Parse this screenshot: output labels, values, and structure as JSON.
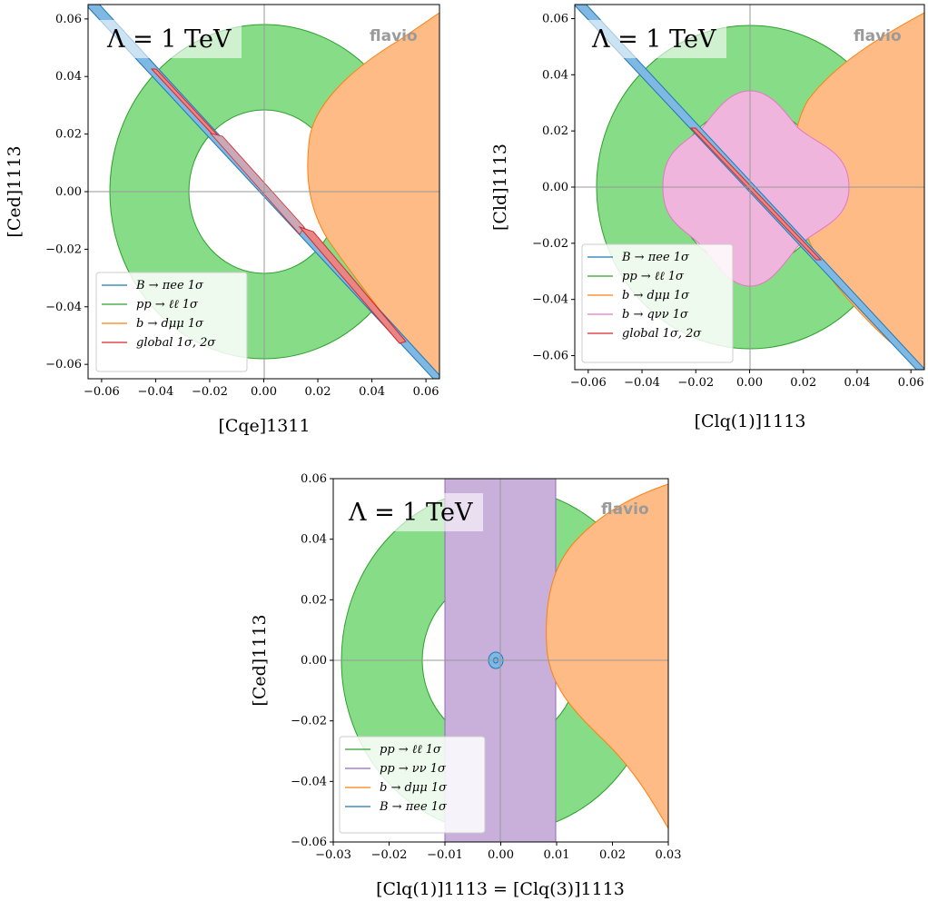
{
  "colors": {
    "blue_line": "#1f77b4",
    "blue_fill": "#7fb8e3",
    "green_line": "#2ca02c",
    "green_fill": "#87dc87",
    "orange_line": "#ff7f0e",
    "orange_fill": "#ffbb85",
    "pink_line": "#e377c2",
    "pink_fill": "#f0b5dd",
    "purple_line": "#9467bd",
    "purple_fill": "#c8b0db",
    "red_line": "#d62728",
    "red_fill": "#e88686"
  },
  "chart_data": [
    {
      "type": "contour",
      "title": "",
      "annotation": "Λ = 1 TeV",
      "brand": "flavio",
      "xlabel": "[Cqe]1311",
      "ylabel": "[Ced]1113",
      "xlim": [
        -0.065,
        0.065
      ],
      "ylim": [
        -0.065,
        0.065
      ],
      "xticks": [
        "−0.06",
        "−0.04",
        "−0.02",
        "0.00",
        "0.02",
        "0.04",
        "0.06"
      ],
      "yticks": [
        "−0.06",
        "−0.04",
        "−0.02",
        "0.00",
        "0.02",
        "0.04",
        "0.06"
      ],
      "legend_position": "lower left",
      "legend": [
        {
          "label": "B → πee 1σ",
          "color": "#1f77b4"
        },
        {
          "label": "pp → ℓℓ 1σ",
          "color": "#2ca02c"
        },
        {
          "label": "b → dμμ 1σ",
          "color": "#ff7f0e"
        },
        {
          "label": "global 1σ, 2σ",
          "color": "#d62728"
        }
      ],
      "regions": {
        "pp_ll": {
          "kind": "annulus",
          "inner_radius": 0.028,
          "outer_radius": 0.057
        },
        "b_dmumu": {
          "kind": "region right of boundary",
          "boundary": [
            [
              0.017,
              0.065
            ],
            [
              0.02,
              0.04
            ],
            [
              0.019,
              0.02
            ],
            [
              0.017,
              0.0
            ],
            [
              0.02,
              -0.02
            ],
            [
              0.03,
              -0.035
            ],
            [
              0.04,
              -0.048
            ],
            [
              0.05,
              -0.058
            ],
            [
              0.065,
              -0.063
            ]
          ]
        },
        "B_piee": {
          "kind": "band along y = -x",
          "half_width": 0.0012
        },
        "global": {
          "kind": "segments along y = -x",
          "segments": [
            [
              -0.042,
              0.042,
              -0.018,
              0.018
            ],
            [
              0.013,
              -0.013,
              0.052,
              -0.052
            ]
          ]
        }
      }
    },
    {
      "type": "contour",
      "title": "",
      "annotation": "Λ = 1 TeV",
      "brand": "flavio",
      "xlabel": "[Clq(1)]1113",
      "ylabel": "[Cld]1113",
      "xlim": [
        -0.065,
        0.065
      ],
      "ylim": [
        -0.065,
        0.065
      ],
      "xticks": [
        "−0.06",
        "−0.04",
        "−0.02",
        "0.00",
        "0.02",
        "0.04",
        "0.06"
      ],
      "yticks": [
        "−0.06",
        "−0.04",
        "−0.02",
        "0.00",
        "0.02",
        "0.04",
        "0.06"
      ],
      "legend_position": "lower left",
      "legend": [
        {
          "label": "B → πee 1σ",
          "color": "#1f77b4"
        },
        {
          "label": "pp → ℓℓ 1σ",
          "color": "#2ca02c"
        },
        {
          "label": "b → dμμ 1σ",
          "color": "#ff7f0e"
        },
        {
          "label": "b → qνν 1σ",
          "color": "#e377c2"
        },
        {
          "label": "global 1σ, 2σ",
          "color": "#d62728"
        }
      ],
      "regions": {
        "pp_ll": {
          "kind": "annulus",
          "inner_radius": 0.028,
          "outer_radius": 0.057
        },
        "b_dmumu": {
          "kind": "region right of boundary",
          "boundary": [
            [
              0.02,
              0.065
            ],
            [
              0.017,
              0.04
            ],
            [
              0.016,
              0.02
            ],
            [
              0.017,
              0.0
            ],
            [
              0.02,
              -0.02
            ],
            [
              0.03,
              -0.035
            ],
            [
              0.04,
              -0.048
            ],
            [
              0.05,
              -0.058
            ],
            [
              0.065,
              -0.063
            ]
          ]
        },
        "b_qnunu": {
          "kind": "rounded square",
          "half_width": 0.035
        },
        "B_piee": {
          "kind": "band along y = -x",
          "half_width": 0.0012
        },
        "global": {
          "kind": "segment along y = -x",
          "segments": [
            [
              -0.022,
              0.021,
              0.027,
              -0.026
            ]
          ]
        }
      }
    },
    {
      "type": "contour",
      "title": "",
      "annotation": "Λ = 1 TeV",
      "brand": "flavio",
      "xlabel": "[Clq(1)]1113 = [Clq(3)]1113",
      "ylabel": "[Ced]1113",
      "xlim": [
        -0.03,
        0.03
      ],
      "ylim": [
        -0.06,
        0.06
      ],
      "xticks": [
        "−0.03",
        "−0.02",
        "−0.01",
        "0.00",
        "0.01",
        "0.02",
        "0.03"
      ],
      "yticks": [
        "−0.06",
        "−0.04",
        "−0.02",
        "0.00",
        "0.02",
        "0.04",
        "0.06"
      ],
      "legend_position": "lower left",
      "legend": [
        {
          "label": "pp → ℓℓ 1σ",
          "color": "#2ca02c"
        },
        {
          "label": "pp → νν 1σ",
          "color": "#9467bd"
        },
        {
          "label": "b → dμμ 1σ",
          "color": "#ff7f0e"
        },
        {
          "label": "B → πee 1σ",
          "color": "#1f77b4"
        }
      ],
      "regions": {
        "pp_ll": {
          "kind": "ellipse annulus",
          "inner_radius": 0.014,
          "outer_radius": 0.0285,
          "y_scale": 2
        },
        "pp_nunu": {
          "kind": "vertical band",
          "x_range": [
            -0.01,
            0.01
          ]
        },
        "b_dmumu": {
          "kind": "region right of boundary",
          "boundary": [
            [
              0.03,
              0.058
            ],
            [
              0.022,
              0.054
            ],
            [
              0.015,
              0.045
            ],
            [
              0.01,
              0.032
            ],
            [
              0.009,
              0.02
            ],
            [
              0.008,
              0.0
            ],
            [
              0.01,
              -0.014
            ],
            [
              0.015,
              -0.025
            ],
            [
              0.02,
              -0.033
            ],
            [
              0.025,
              -0.042
            ],
            [
              0.03,
              -0.056
            ]
          ]
        },
        "B_piee": {
          "kind": "small ellipse",
          "center": [
            -0.0008,
            0.0
          ],
          "rx": 0.0008,
          "ry": 0.0018
        }
      }
    }
  ]
}
